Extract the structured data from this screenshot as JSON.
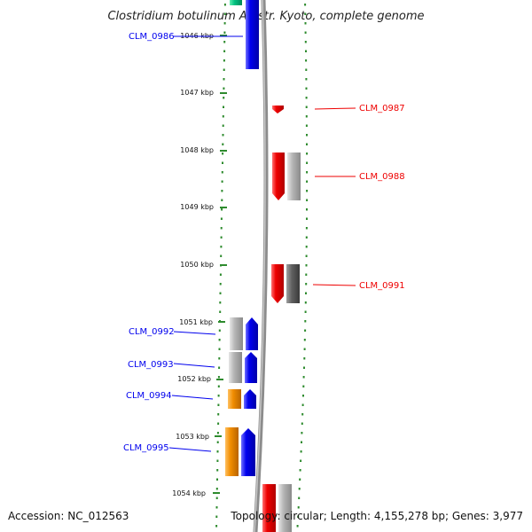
{
  "title": "Clostridium botulinum A2 str. Kyoto, complete genome",
  "footer": {
    "accession": "Accession: NC_012563",
    "info": "Topology: circular; Length: 4,155,278 bp; Genes: 3,977"
  },
  "ticks": [
    "1046 kbp",
    "1047 kbp",
    "1048 kbp",
    "1049 kbp",
    "1050 kbp",
    "1051 kbp",
    "1052 kbp",
    "1053 kbp",
    "1054 kbp"
  ],
  "genes": [
    {
      "name": "CLM_0986",
      "strand": "forward",
      "color": "#0000ee"
    },
    {
      "name": "CLM_0987",
      "strand": "reverse",
      "color": "#ee0000"
    },
    {
      "name": "CLM_0988",
      "strand": "reverse",
      "color": "#ee0000"
    },
    {
      "name": "CLM_0991",
      "strand": "reverse",
      "color": "#ee0000"
    },
    {
      "name": "CLM_0992",
      "strand": "forward",
      "color": "#0000ee"
    },
    {
      "name": "CLM_0993",
      "strand": "forward",
      "color": "#0000ee"
    },
    {
      "name": "CLM_0994",
      "strand": "forward",
      "color": "#0000ee"
    },
    {
      "name": "CLM_0995",
      "strand": "forward",
      "color": "#0000ee"
    }
  ],
  "colors": {
    "forward": "#0000ee",
    "reverse": "#ee0000",
    "orange": "#f08c00",
    "grey_light": "#b4b4b4",
    "grey_dark": "#606060",
    "teal": "#00c080",
    "tick_green": "#2e8b2e",
    "backbone": "#8c8c8c"
  }
}
